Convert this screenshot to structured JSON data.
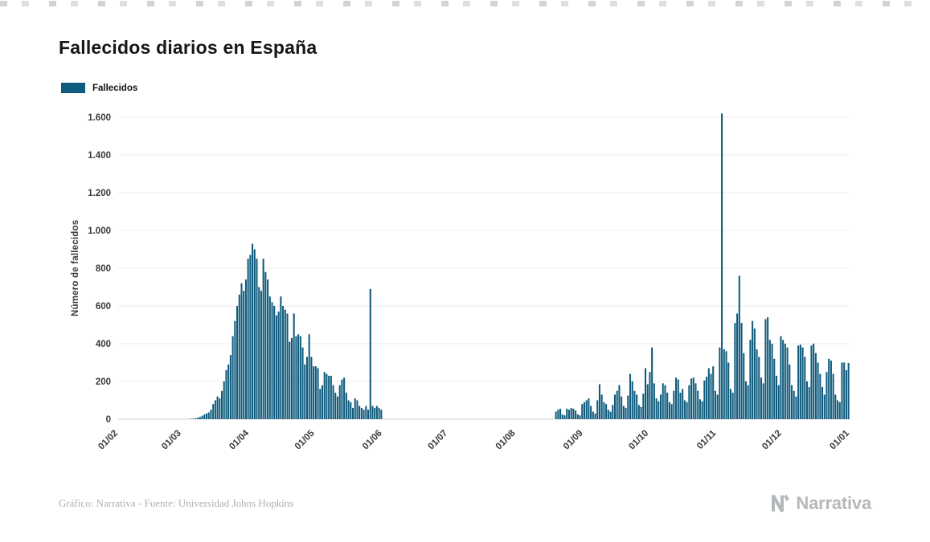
{
  "page": {
    "title": "Fallecidos diarios en España",
    "source_note": "Gráfico: Narrativa - Fuente: Universidad Johns Hopkins",
    "brand": "Narrativa"
  },
  "legend": {
    "label": "Fallecidos",
    "color": "#0f5b7d"
  },
  "chart_data": {
    "type": "bar",
    "title": "Fallecidos diarios en España",
    "series_name": "Fallecidos",
    "xlabel": "",
    "ylabel": "Número de fallecidos",
    "ylim": [
      0,
      1600
    ],
    "grid": "horizontal",
    "legend_position": "top-left",
    "bar_color": "#0f5b7d",
    "y_ticks": [
      0,
      200,
      400,
      600,
      800,
      1000,
      1200,
      1400,
      1600
    ],
    "y_tick_labels": [
      "0",
      "200",
      "400",
      "600",
      "800",
      "1.000",
      "1.200",
      "1.400",
      "1.600"
    ],
    "x_tick_labels": [
      "01/02",
      "01/03",
      "01/04",
      "01/05",
      "01/06",
      "01/07",
      "01/08",
      "01/09",
      "01/10",
      "01/11",
      "01/12",
      "01/01"
    ],
    "x_tick_day_offsets": [
      0,
      29,
      60,
      90,
      121,
      151,
      182,
      213,
      243,
      274,
      304,
      335
    ],
    "start_label": "01/02",
    "values": [
      0,
      0,
      0,
      0,
      0,
      0,
      0,
      0,
      0,
      0,
      0,
      0,
      0,
      0,
      0,
      0,
      0,
      0,
      0,
      0,
      0,
      0,
      0,
      0,
      0,
      0,
      0,
      0,
      0,
      0,
      0,
      0,
      1,
      2,
      3,
      5,
      8,
      12,
      18,
      25,
      30,
      36,
      50,
      80,
      100,
      120,
      110,
      150,
      200,
      260,
      290,
      340,
      440,
      520,
      600,
      660,
      720,
      680,
      740,
      850,
      870,
      930,
      900,
      850,
      700,
      680,
      850,
      780,
      740,
      650,
      620,
      600,
      550,
      570,
      650,
      600,
      580,
      560,
      410,
      430,
      560,
      440,
      450,
      440,
      380,
      290,
      330,
      450,
      330,
      280,
      280,
      270,
      160,
      180,
      250,
      240,
      230,
      230,
      180,
      140,
      120,
      180,
      210,
      220,
      140,
      100,
      90,
      60,
      110,
      100,
      70,
      60,
      50,
      70,
      50,
      690,
      70,
      60,
      70,
      60,
      50,
      0,
      0,
      0,
      0,
      0,
      0,
      0,
      0,
      0,
      0,
      0,
      0,
      0,
      0,
      0,
      0,
      0,
      0,
      0,
      0,
      0,
      0,
      0,
      0,
      0,
      0,
      0,
      0,
      0,
      0,
      0,
      0,
      0,
      0,
      0,
      0,
      0,
      0,
      0,
      0,
      0,
      0,
      0,
      0,
      0,
      0,
      0,
      0,
      0,
      0,
      0,
      0,
      0,
      0,
      0,
      0,
      0,
      0,
      0,
      0,
      0,
      0,
      0,
      0,
      0,
      0,
      0,
      0,
      0,
      0,
      0,
      0,
      0,
      0,
      0,
      0,
      0,
      0,
      0,
      40,
      50,
      55,
      25,
      20,
      55,
      50,
      60,
      55,
      45,
      25,
      20,
      80,
      90,
      100,
      110,
      70,
      40,
      30,
      100,
      185,
      130,
      90,
      80,
      50,
      40,
      75,
      130,
      150,
      180,
      120,
      70,
      60,
      125,
      240,
      200,
      150,
      130,
      75,
      65,
      135,
      270,
      185,
      250,
      380,
      190,
      110,
      95,
      130,
      190,
      180,
      140,
      90,
      80,
      150,
      220,
      210,
      140,
      160,
      100,
      90,
      180,
      215,
      220,
      190,
      150,
      105,
      95,
      205,
      225,
      270,
      240,
      280,
      150,
      130,
      380,
      1620,
      370,
      360,
      300,
      160,
      140,
      510,
      560,
      760,
      510,
      350,
      200,
      180,
      420,
      520,
      480,
      370,
      330,
      220,
      190,
      530,
      540,
      420,
      400,
      320,
      230,
      180,
      440,
      420,
      400,
      380,
      290,
      180,
      150,
      120,
      390,
      395,
      380,
      330,
      200,
      170,
      390,
      400,
      350,
      300,
      240,
      170,
      130,
      250,
      320,
      310,
      240,
      130,
      100,
      90,
      300,
      300,
      260,
      298
    ]
  }
}
